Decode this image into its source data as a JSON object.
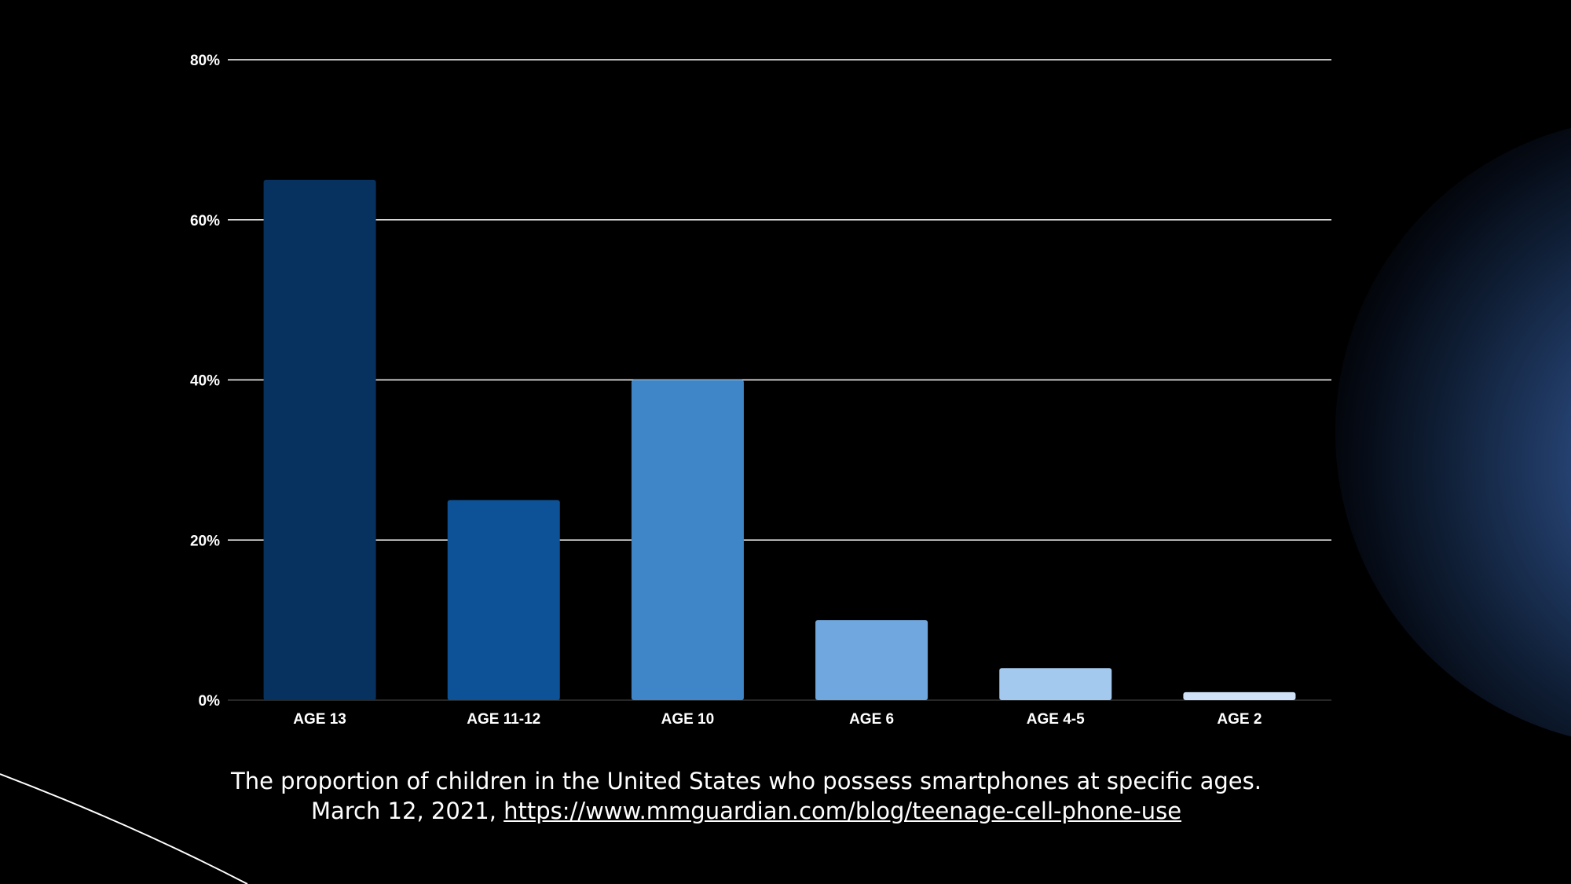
{
  "colors": {
    "background": "#000000",
    "gridline": "#ffffff",
    "text": "#ffffff"
  },
  "chart_data": {
    "type": "bar",
    "categories": [
      "AGE 13",
      "AGE 11-12",
      "AGE 10",
      "AGE 6",
      "AGE 4-5",
      "AGE 2"
    ],
    "values": [
      65,
      25,
      40,
      10,
      4,
      1
    ],
    "bar_colors": [
      "#07325f",
      "#0d5296",
      "#3f86c8",
      "#6fa7de",
      "#a4c9ee",
      "#cfe1f6"
    ],
    "ylim": [
      0,
      80
    ],
    "yticks": [
      0,
      20,
      40,
      60,
      80
    ],
    "ytick_labels": [
      "0%",
      "20%",
      "40%",
      "60%",
      "80%"
    ],
    "grid": true,
    "title": "",
    "xlabel": "",
    "ylabel": ""
  },
  "caption": {
    "line1": "The proportion of children in the United States who possess smartphones at specific ages.",
    "line2_prefix": "March 12, 2021, ",
    "link_text": "https://www.mmguardian.com/blog/teenage-cell-phone-use"
  }
}
